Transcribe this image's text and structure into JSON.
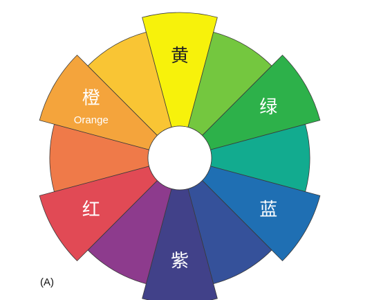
{
  "figure": {
    "panel_label": "(A)"
  },
  "segments": [
    {
      "key": "yellow",
      "color": "#f7f20b",
      "label": "黄",
      "label_dark": true
    },
    {
      "key": "yellow-green",
      "color": "#74c73f"
    },
    {
      "key": "green",
      "color": "#2db14a",
      "label": "绿"
    },
    {
      "key": "teal",
      "color": "#12ab8f"
    },
    {
      "key": "blue",
      "color": "#1f6fb3",
      "label": "蓝"
    },
    {
      "key": "blue-violet",
      "color": "#35519a"
    },
    {
      "key": "violet",
      "color": "#414189",
      "label": "紫"
    },
    {
      "key": "red-violet",
      "color": "#8d3b8d"
    },
    {
      "key": "red",
      "color": "#e14a55",
      "label": "红"
    },
    {
      "key": "red-orange",
      "color": "#ef7a49"
    },
    {
      "key": "orange",
      "color": "#f4a43c",
      "label": "橙",
      "sublabel": "Orange"
    },
    {
      "key": "yellow-orange",
      "color": "#f9c534"
    }
  ]
}
